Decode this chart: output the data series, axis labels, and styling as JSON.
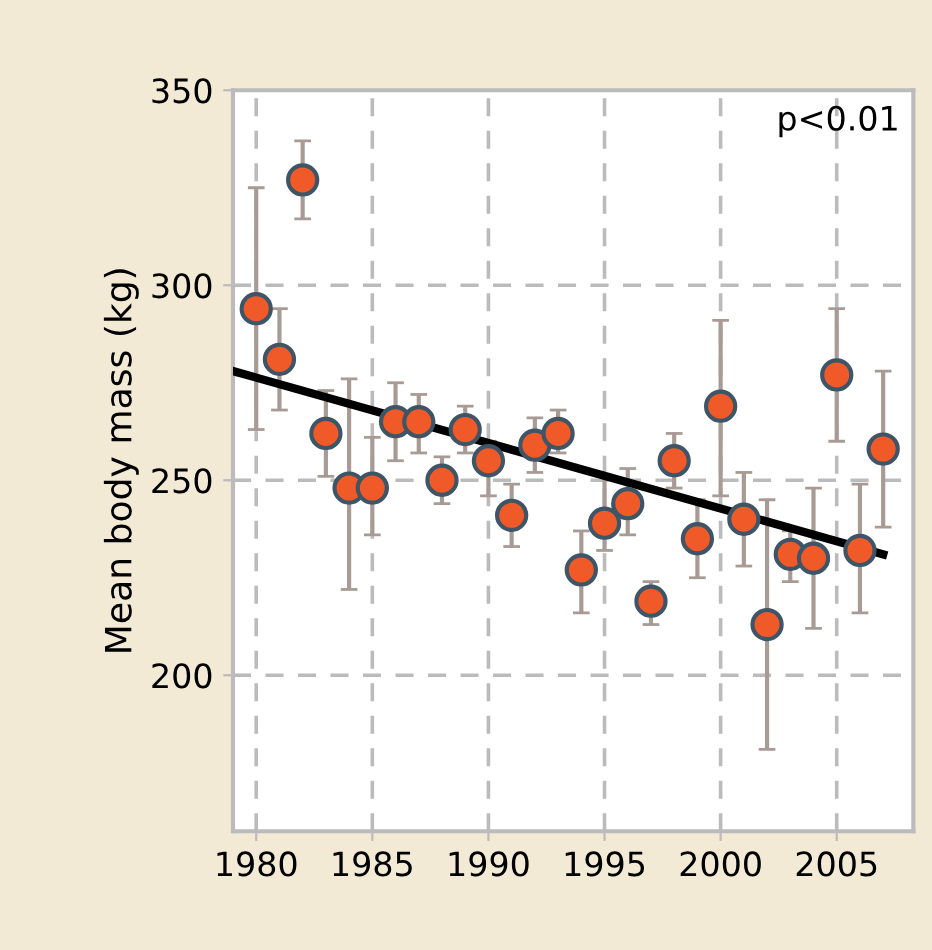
{
  "chart_data": {
    "type": "scatter",
    "ylabel": "Mean body mass (kg)",
    "annotations": [
      "p<0.01"
    ],
    "xlim": [
      1979,
      2008.3
    ],
    "ylim": [
      160,
      350
    ],
    "xticks": [
      1980,
      1985,
      1990,
      1995,
      2000,
      2005
    ],
    "yticks": [
      200,
      250,
      300,
      350
    ],
    "grid": true,
    "series": [
      {
        "type": "scatter",
        "marker": "circle",
        "color": "#f05a28",
        "x": [
          1980,
          1981,
          1982,
          1983,
          1984,
          1985,
          1986,
          1987,
          1988,
          1989,
          1990,
          1991,
          1992,
          1993,
          1994,
          1995,
          1996,
          1997,
          1998,
          1999,
          2000,
          2001,
          2002,
          2003,
          2004,
          2005,
          2006,
          2007
        ],
        "values": [
          294,
          281,
          327,
          262,
          248,
          248,
          265,
          265,
          250,
          263,
          255,
          241,
          259,
          262,
          227,
          239,
          244,
          219,
          255,
          235,
          269,
          240,
          213,
          231,
          230,
          277,
          232,
          258
        ],
        "errors": [
          [
            263,
            325
          ],
          [
            268,
            294
          ],
          [
            317,
            337
          ],
          [
            251,
            273
          ],
          [
            222,
            276
          ],
          [
            236,
            261
          ],
          [
            255,
            275
          ],
          [
            257,
            272
          ],
          [
            244,
            256
          ],
          [
            257,
            269
          ],
          [
            246,
            260
          ],
          [
            233,
            249
          ],
          [
            252,
            266
          ],
          [
            257,
            268
          ],
          [
            216,
            237
          ],
          [
            232,
            251
          ],
          [
            236,
            253
          ],
          [
            213,
            224
          ],
          [
            248,
            262
          ],
          [
            225,
            245
          ],
          [
            246,
            291
          ],
          [
            228,
            252
          ],
          [
            181,
            245
          ],
          [
            224,
            237
          ],
          [
            212,
            248
          ],
          [
            260,
            294
          ],
          [
            216,
            249
          ],
          [
            238,
            278
          ]
        ]
      },
      {
        "type": "line",
        "color": "#000000",
        "x": [
          1979,
          2007
        ],
        "values": [
          278,
          231
        ],
        "line_style": "solid"
      }
    ]
  }
}
